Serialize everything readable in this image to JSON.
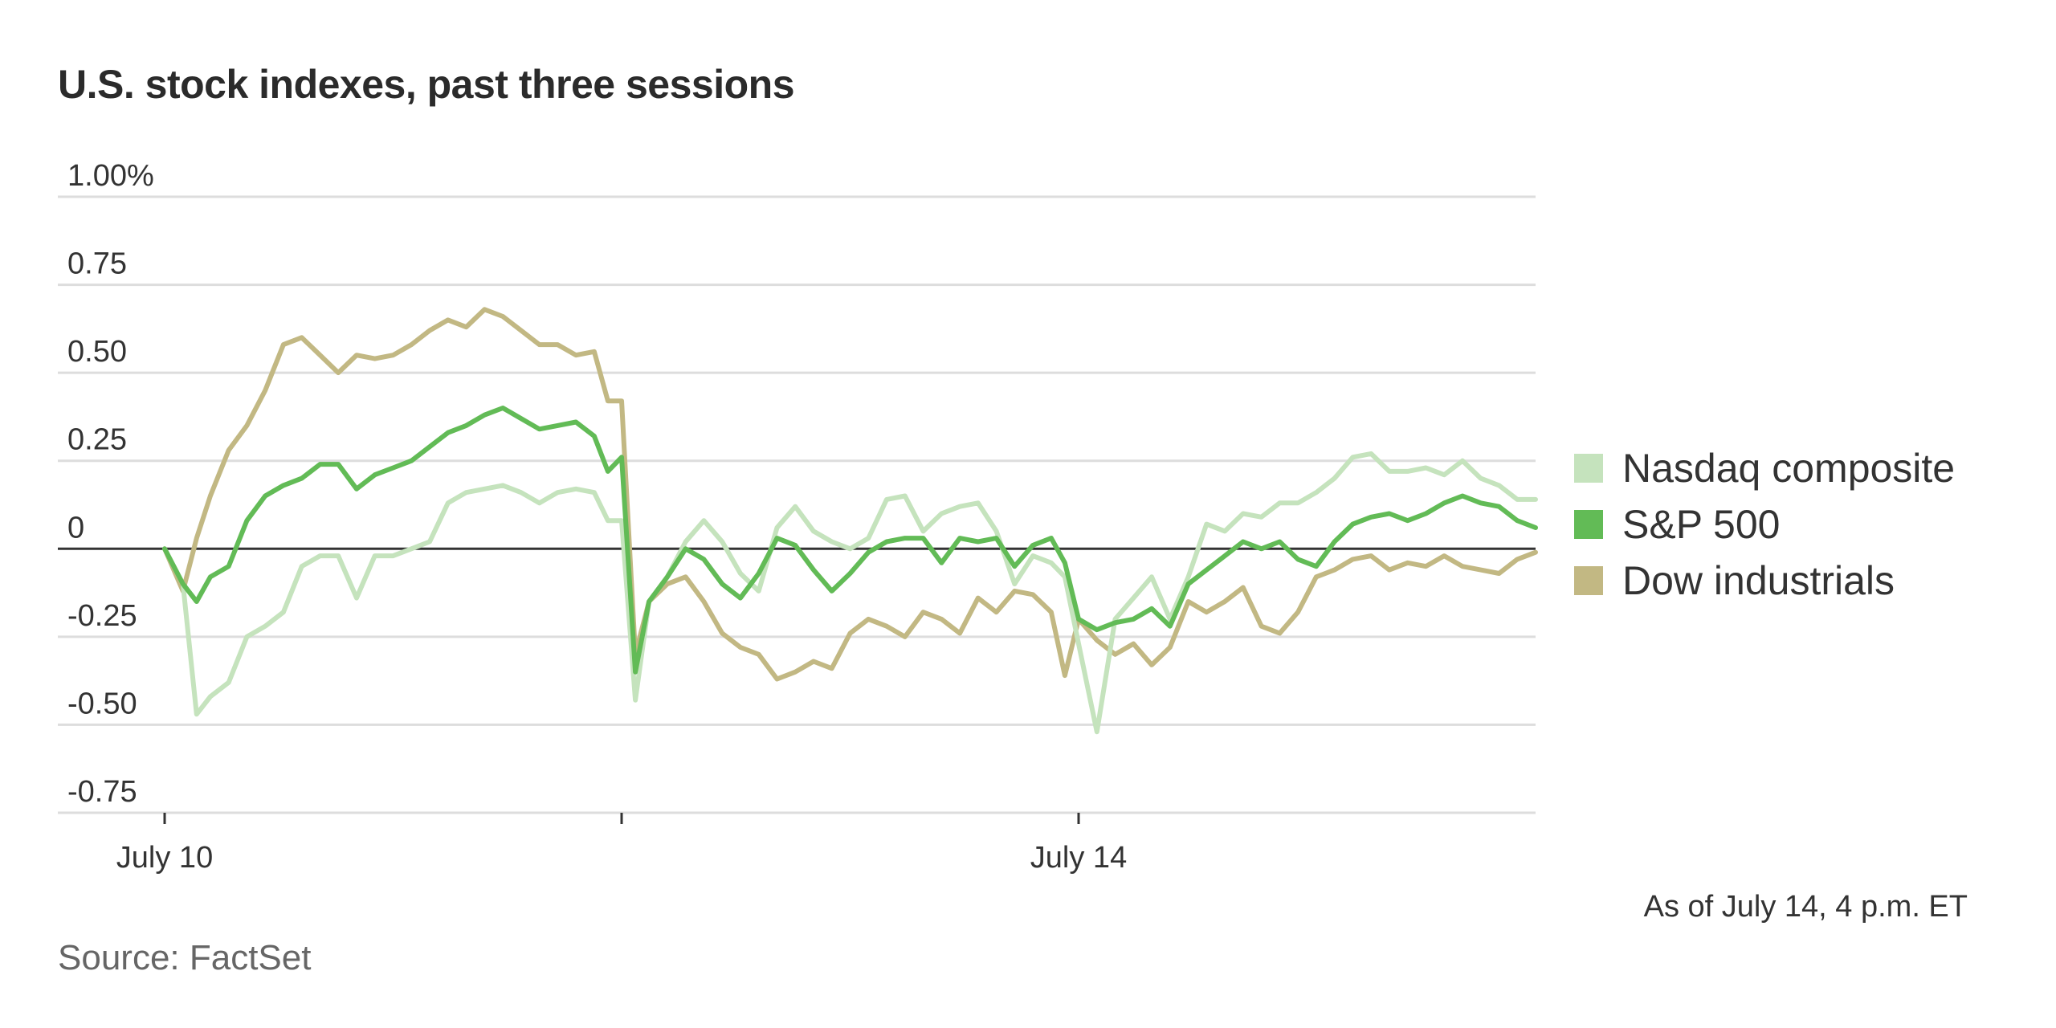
{
  "title": "U.S. stock indexes, past three sessions",
  "as_of": "As of July 14, 4 p.m. ET",
  "source": "Source: FactSet",
  "colors": {
    "nasdaq": "#c5e3bd",
    "sp500": "#62bb56",
    "dow": "#c2b883",
    "zero_line": "#333333",
    "grid": "#dddddd"
  },
  "chart_data": {
    "type": "line",
    "title": "U.S. stock indexes, past three sessions",
    "xlabel": "",
    "ylabel": "",
    "ylim": [
      -0.75,
      1.0
    ],
    "y_ticks": [
      1.0,
      0.75,
      0.5,
      0.25,
      0,
      -0.25,
      -0.5,
      -0.75
    ],
    "y_tick_labels": [
      "1.00%",
      "0.75",
      "0.50",
      "0.25",
      "0",
      "-0.25",
      "-0.50",
      "-0.75"
    ],
    "x_range": [
      0,
      3
    ],
    "x_tick_positions": [
      0,
      1,
      2
    ],
    "x_tick_labels": [
      "July 10",
      "",
      "July 14"
    ],
    "grid": "horizontal",
    "legend_position": "right",
    "series": [
      {
        "name": "Nasdaq composite",
        "color": "#c5e3bd",
        "x": [
          0.0,
          0.04,
          0.07,
          0.1,
          0.14,
          0.18,
          0.22,
          0.26,
          0.3,
          0.34,
          0.38,
          0.42,
          0.46,
          0.5,
          0.54,
          0.58,
          0.62,
          0.66,
          0.7,
          0.74,
          0.78,
          0.82,
          0.86,
          0.9,
          0.94,
          0.97,
          1.0,
          1.03,
          1.06,
          1.1,
          1.14,
          1.18,
          1.22,
          1.26,
          1.3,
          1.34,
          1.38,
          1.42,
          1.46,
          1.5,
          1.54,
          1.58,
          1.62,
          1.66,
          1.7,
          1.74,
          1.78,
          1.82,
          1.86,
          1.9,
          1.94,
          1.97,
          2.0,
          2.04,
          2.08,
          2.12,
          2.16,
          2.2,
          2.24,
          2.28,
          2.32,
          2.36,
          2.4,
          2.44,
          2.48,
          2.52,
          2.56,
          2.6,
          2.64,
          2.68,
          2.72,
          2.76,
          2.8,
          2.84,
          2.88,
          2.92,
          2.96,
          3.0
        ],
        "values": [
          0.0,
          -0.1,
          -0.47,
          -0.42,
          -0.38,
          -0.25,
          -0.22,
          -0.18,
          -0.05,
          -0.02,
          -0.02,
          -0.14,
          -0.02,
          -0.02,
          0.0,
          0.02,
          0.13,
          0.16,
          0.17,
          0.18,
          0.16,
          0.13,
          0.16,
          0.17,
          0.16,
          0.08,
          0.08,
          -0.43,
          -0.15,
          -0.08,
          0.02,
          0.08,
          0.02,
          -0.07,
          -0.12,
          0.06,
          0.12,
          0.05,
          0.02,
          0.0,
          0.03,
          0.14,
          0.15,
          0.05,
          0.1,
          0.12,
          0.13,
          0.05,
          -0.1,
          -0.02,
          -0.04,
          -0.08,
          -0.27,
          -0.52,
          -0.2,
          -0.14,
          -0.08,
          -0.2,
          -0.08,
          0.07,
          0.05,
          0.1,
          0.09,
          0.13,
          0.13,
          0.16,
          0.2,
          0.26,
          0.27,
          0.22,
          0.22,
          0.23,
          0.21,
          0.25,
          0.2,
          0.18,
          0.14,
          0.14
        ]
      },
      {
        "name": "S&P 500",
        "color": "#62bb56",
        "x": [
          0.0,
          0.04,
          0.07,
          0.1,
          0.14,
          0.18,
          0.22,
          0.26,
          0.3,
          0.34,
          0.38,
          0.42,
          0.46,
          0.5,
          0.54,
          0.58,
          0.62,
          0.66,
          0.7,
          0.74,
          0.78,
          0.82,
          0.86,
          0.9,
          0.94,
          0.97,
          1.0,
          1.03,
          1.06,
          1.1,
          1.14,
          1.18,
          1.22,
          1.26,
          1.3,
          1.34,
          1.38,
          1.42,
          1.46,
          1.5,
          1.54,
          1.58,
          1.62,
          1.66,
          1.7,
          1.74,
          1.78,
          1.82,
          1.86,
          1.9,
          1.94,
          1.97,
          2.0,
          2.04,
          2.08,
          2.12,
          2.16,
          2.2,
          2.24,
          2.28,
          2.32,
          2.36,
          2.4,
          2.44,
          2.48,
          2.52,
          2.56,
          2.6,
          2.64,
          2.68,
          2.72,
          2.76,
          2.8,
          2.84,
          2.88,
          2.92,
          2.96,
          3.0
        ],
        "values": [
          0.0,
          -0.1,
          -0.15,
          -0.08,
          -0.05,
          0.08,
          0.15,
          0.18,
          0.2,
          0.24,
          0.24,
          0.17,
          0.21,
          0.23,
          0.25,
          0.29,
          0.33,
          0.35,
          0.38,
          0.4,
          0.37,
          0.34,
          0.35,
          0.36,
          0.32,
          0.22,
          0.26,
          -0.35,
          -0.15,
          -0.08,
          0.0,
          -0.03,
          -0.1,
          -0.14,
          -0.07,
          0.03,
          0.01,
          -0.06,
          -0.12,
          -0.07,
          -0.01,
          0.02,
          0.03,
          0.03,
          -0.04,
          0.03,
          0.02,
          0.03,
          -0.05,
          0.01,
          0.03,
          -0.04,
          -0.2,
          -0.23,
          -0.21,
          -0.2,
          -0.17,
          -0.22,
          -0.1,
          -0.06,
          -0.02,
          0.02,
          0.0,
          0.02,
          -0.03,
          -0.05,
          0.02,
          0.07,
          0.09,
          0.1,
          0.08,
          0.1,
          0.13,
          0.15,
          0.13,
          0.12,
          0.08,
          0.06
        ]
      },
      {
        "name": "Dow industrials",
        "color": "#c2b883",
        "x": [
          0.0,
          0.04,
          0.07,
          0.1,
          0.14,
          0.18,
          0.22,
          0.26,
          0.3,
          0.34,
          0.38,
          0.42,
          0.46,
          0.5,
          0.54,
          0.58,
          0.62,
          0.66,
          0.7,
          0.74,
          0.78,
          0.82,
          0.86,
          0.9,
          0.94,
          0.97,
          1.0,
          1.03,
          1.06,
          1.1,
          1.14,
          1.18,
          1.22,
          1.26,
          1.3,
          1.34,
          1.38,
          1.42,
          1.46,
          1.5,
          1.54,
          1.58,
          1.62,
          1.66,
          1.7,
          1.74,
          1.78,
          1.82,
          1.86,
          1.9,
          1.94,
          1.97,
          2.0,
          2.04,
          2.08,
          2.12,
          2.16,
          2.2,
          2.24,
          2.28,
          2.32,
          2.36,
          2.4,
          2.44,
          2.48,
          2.52,
          2.56,
          2.6,
          2.64,
          2.68,
          2.72,
          2.76,
          2.8,
          2.84,
          2.88,
          2.92,
          2.96,
          3.0
        ],
        "values": [
          0.0,
          -0.12,
          0.03,
          0.15,
          0.28,
          0.35,
          0.45,
          0.58,
          0.6,
          0.55,
          0.5,
          0.55,
          0.54,
          0.55,
          0.58,
          0.62,
          0.65,
          0.63,
          0.68,
          0.66,
          0.62,
          0.58,
          0.58,
          0.55,
          0.56,
          0.42,
          0.42,
          -0.3,
          -0.15,
          -0.1,
          -0.08,
          -0.15,
          -0.24,
          -0.28,
          -0.3,
          -0.37,
          -0.35,
          -0.32,
          -0.34,
          -0.24,
          -0.2,
          -0.22,
          -0.25,
          -0.18,
          -0.2,
          -0.24,
          -0.14,
          -0.18,
          -0.12,
          -0.13,
          -0.18,
          -0.36,
          -0.2,
          -0.26,
          -0.3,
          -0.27,
          -0.33,
          -0.28,
          -0.15,
          -0.18,
          -0.15,
          -0.11,
          -0.22,
          -0.24,
          -0.18,
          -0.08,
          -0.06,
          -0.03,
          -0.02,
          -0.06,
          -0.04,
          -0.05,
          -0.02,
          -0.05,
          -0.06,
          -0.07,
          -0.03,
          -0.01
        ]
      }
    ]
  }
}
